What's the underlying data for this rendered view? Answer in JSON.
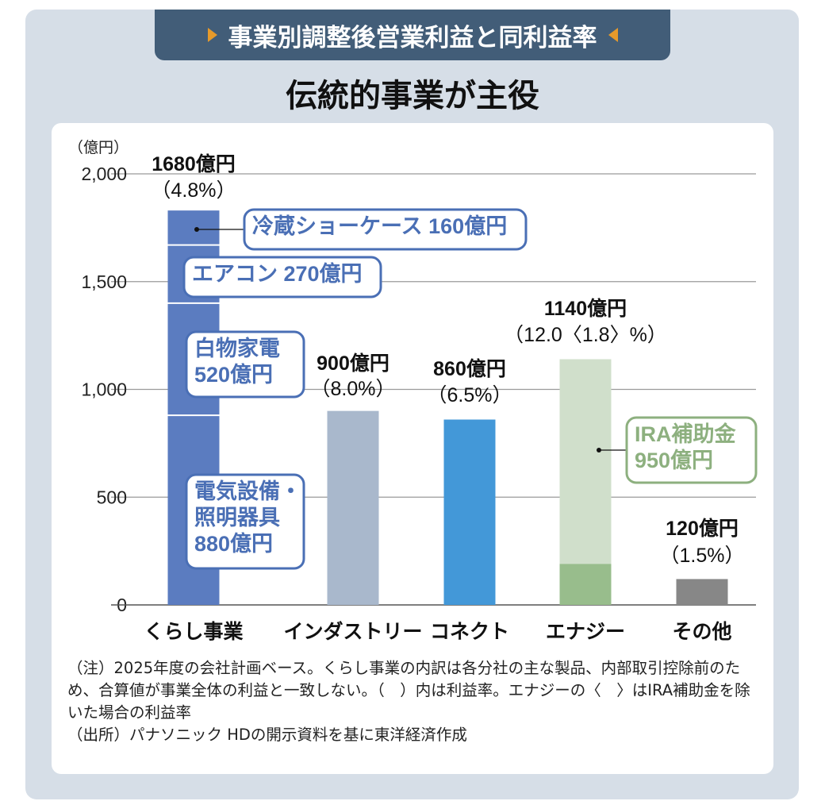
{
  "header": {
    "banner": "事業別調整後営業利益と同利益率",
    "subtitle": "伝統的事業が主役"
  },
  "colors": {
    "kurashi": "#5b7cc0",
    "industry": "#a9b8cc",
    "connect": "#4398d8",
    "energy_light": "#d0dfcb",
    "energy_dark": "#98bd8c",
    "other": "#878787",
    "callout_blue": "#4a6fb5",
    "callout_green": "#8db07f",
    "banner_bg": "#425d78",
    "accent": "#e69a2b"
  },
  "chart_data": {
    "type": "bar",
    "title": "事業別調整後営業利益と同利益率",
    "ylabel": "（億円）",
    "ylim": [
      0,
      2000
    ],
    "yticks": [
      {
        "v": 0,
        "label": "0"
      },
      {
        "v": 500,
        "label": "500"
      },
      {
        "v": 1000,
        "label": "1,000"
      },
      {
        "v": 1500,
        "label": "1,500"
      },
      {
        "v": 2000,
        "label": "2,000"
      }
    ],
    "grid": true,
    "categories": [
      "くらし事業",
      "インダストリー",
      "コネクト",
      "エナジー",
      "その他"
    ],
    "values": [
      1680,
      900,
      860,
      1140,
      120
    ],
    "value_labels": [
      "1680億円",
      "900億円",
      "860億円",
      "1140億円",
      "120億円"
    ],
    "margin_labels": [
      "（4.8%）",
      "（8.0%）",
      "（6.5%）",
      "（12.0〈1.8〉%）",
      "（1.5%）"
    ],
    "kurashi_breakdown": [
      {
        "name": "電気設備・照明器具",
        "line1": "電気設備・",
        "line2": "照明器具",
        "line3": "880億円",
        "value": 880
      },
      {
        "name": "白物家電",
        "line1": "白物家電",
        "line2": "520億円",
        "value": 520
      },
      {
        "name": "エアコン",
        "line1": "エアコン 270億円",
        "value": 270
      },
      {
        "name": "冷蔵ショーケース",
        "line1": "冷蔵ショーケース 160億円",
        "value": 160
      }
    ],
    "energy_subsidy": {
      "line1": "IRA補助金",
      "line2": "950億円",
      "value": 950
    }
  },
  "notes": [
    "（注）2025年度の会社計画ベース。くらし事業の内訳は各分社の主な製品、内部取引控除前のため、合算値が事業全体の利益と一致しない。（　）内は利益率。エナジーの〈　〉はIRA補助金を除いた場合の利益率",
    "（出所）パナソニック HDの開示資料を基に東洋経済作成"
  ]
}
